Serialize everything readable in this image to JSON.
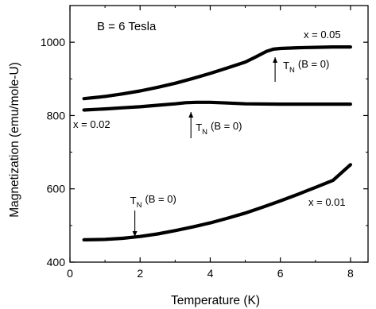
{
  "chart_data": {
    "type": "line",
    "title": "",
    "xlabel": "Temperature (K)",
    "ylabel": "Magnetization (emu/mole-U)",
    "xlim": [
      0,
      8.5
    ],
    "ylim": [
      400,
      1100
    ],
    "xticks": [
      0,
      2,
      4,
      6,
      8
    ],
    "yticks": [
      400,
      600,
      800,
      1000
    ],
    "xtick_labels": [
      "0",
      "2",
      "4",
      "6",
      "8"
    ],
    "ytick_labels": [
      "400",
      "600",
      "800",
      "1000"
    ],
    "grid": false,
    "series": [
      {
        "name": "x = 0.05",
        "x": [
          0.4,
          1.0,
          1.5,
          2.0,
          2.5,
          3.0,
          3.5,
          4.0,
          4.5,
          5.0,
          5.3,
          5.6,
          5.8,
          6.0,
          6.5,
          7.0,
          7.5,
          8.0
        ],
        "y": [
          846,
          852,
          859,
          867,
          877,
          888,
          901,
          915,
          930,
          946,
          960,
          975,
          981,
          983,
          985,
          986,
          987,
          987
        ]
      },
      {
        "name": "x = 0.02",
        "x": [
          0.4,
          1.0,
          1.5,
          2.0,
          2.5,
          3.0,
          3.3,
          3.6,
          4.0,
          4.5,
          5.0,
          6.0,
          7.0,
          8.0
        ],
        "y": [
          815,
          818,
          821,
          824,
          828,
          832,
          835,
          836,
          836,
          834,
          832,
          831,
          831,
          831
        ]
      },
      {
        "name": "x = 0.01",
        "x": [
          0.4,
          1.0,
          1.5,
          2.0,
          2.5,
          3.0,
          3.5,
          4.0,
          4.5,
          5.0,
          5.5,
          6.0,
          6.5,
          7.0,
          7.5,
          8.0
        ],
        "y": [
          461,
          462,
          465,
          470,
          477,
          486,
          496,
          507,
          520,
          534,
          550,
          567,
          585,
          604,
          623,
          666
        ]
      }
    ],
    "annotations": {
      "field": "B = 6 Tesla",
      "tn_label_main": "T",
      "tn_label_sub": "N",
      "tn_label_rest": "(B = 0)",
      "tn_arrows": [
        {
          "series": "x = 0.05",
          "x": 5.85,
          "direction": "up"
        },
        {
          "series": "x = 0.02",
          "x": 3.45,
          "direction": "up"
        },
        {
          "series": "x = 0.01",
          "x": 1.85,
          "direction": "down"
        }
      ]
    }
  }
}
